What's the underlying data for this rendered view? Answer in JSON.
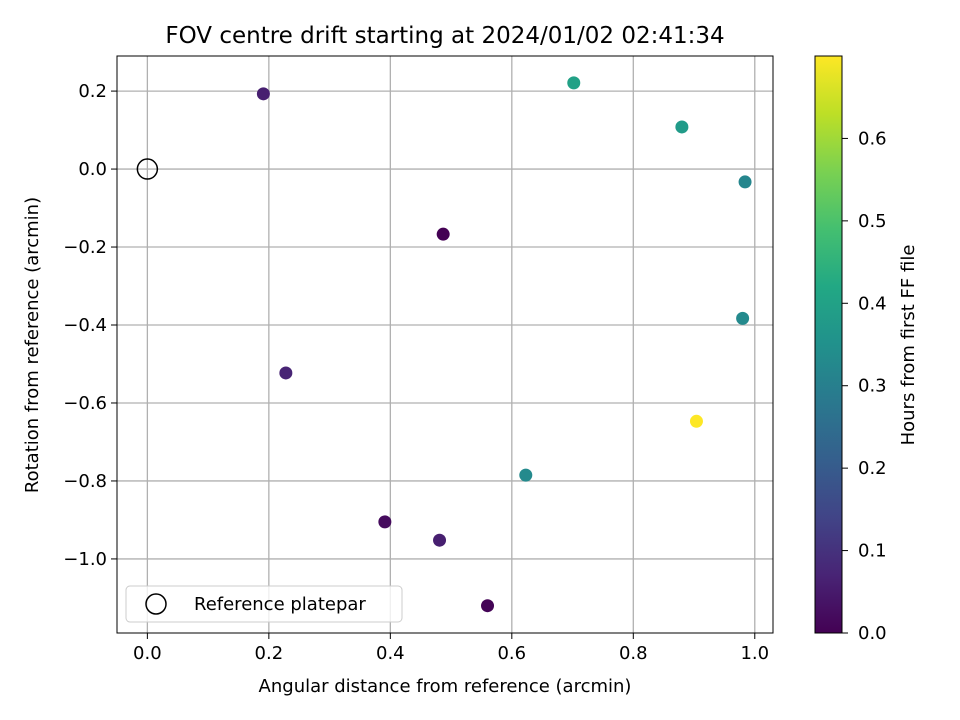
{
  "chart_data": {
    "type": "scatter",
    "title": "FOV centre drift starting at 2024/01/02 02:41:34",
    "xlabel": "Angular distance from reference (arcmin)",
    "ylabel": "Rotation from reference (arcmin)",
    "xlim": [
      -0.05,
      1.03
    ],
    "ylim": [
      -1.19,
      0.29
    ],
    "xticks": [
      0.0,
      0.2,
      0.4,
      0.6,
      0.8,
      1.0
    ],
    "xtick_labels": [
      "0.0",
      "0.2",
      "0.4",
      "0.6",
      "0.8",
      "1.0"
    ],
    "yticks": [
      0.2,
      0.0,
      -0.2,
      -0.4,
      -0.6,
      -0.8,
      -1.0
    ],
    "ytick_labels": [
      "0.2",
      "0.0",
      "−0.2",
      "−0.4",
      "−0.6",
      "−0.8",
      "−1.0"
    ],
    "grid": true,
    "legend": {
      "position": "lower-left",
      "entries": [
        "Reference platepar"
      ]
    },
    "reference": {
      "x": 0.0,
      "y": 0.0,
      "marker": "open-circle"
    },
    "colorbar": {
      "label": "Hours from first FF file",
      "colormap": "viridis",
      "range": [
        0.0,
        0.7
      ],
      "ticks": [
        0.0,
        0.1,
        0.2,
        0.3,
        0.4,
        0.5,
        0.6
      ],
      "tick_labels": [
        "0.0",
        "0.1",
        "0.2",
        "0.3",
        "0.4",
        "0.5",
        "0.6"
      ]
    },
    "points": [
      {
        "x": 0.487,
        "y": -0.167,
        "c": 0.0
      },
      {
        "x": 0.56,
        "y": -1.12,
        "c": 0.005
      },
      {
        "x": 0.391,
        "y": -0.905,
        "c": 0.02
      },
      {
        "x": 0.481,
        "y": -0.952,
        "c": 0.06
      },
      {
        "x": 0.228,
        "y": -0.523,
        "c": 0.07
      },
      {
        "x": 0.191,
        "y": 0.193,
        "c": 0.06
      },
      {
        "x": 0.623,
        "y": -0.785,
        "c": 0.33
      },
      {
        "x": 0.984,
        "y": -0.033,
        "c": 0.32
      },
      {
        "x": 0.98,
        "y": -0.383,
        "c": 0.33
      },
      {
        "x": 0.88,
        "y": 0.108,
        "c": 0.38
      },
      {
        "x": 0.702,
        "y": 0.221,
        "c": 0.4
      },
      {
        "x": 0.904,
        "y": -0.647,
        "c": 0.7
      }
    ]
  }
}
